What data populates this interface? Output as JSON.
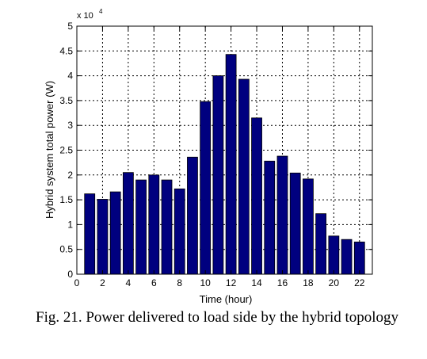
{
  "chart_data": {
    "type": "bar",
    "x": [
      1,
      2,
      3,
      4,
      5,
      6,
      7,
      8,
      9,
      10,
      11,
      12,
      13,
      14,
      15,
      16,
      17,
      18,
      19,
      20,
      21,
      22
    ],
    "values": [
      16200,
      15100,
      16600,
      20500,
      19000,
      20000,
      19000,
      17200,
      23600,
      34800,
      40000,
      44300,
      39300,
      31500,
      22800,
      23800,
      20400,
      19200,
      12200,
      7700,
      7000,
      6500
    ],
    "xlabel": "Time (hour)",
    "ylabel": "Hybrid system total power (W)",
    "xlim": [
      0,
      23
    ],
    "ylim": [
      0,
      50000
    ],
    "xticks": [
      "0",
      "2",
      "4",
      "6",
      "8",
      "10",
      "12",
      "14",
      "16",
      "18",
      "20",
      "22"
    ],
    "yticks": [
      "0",
      "0.5",
      "1",
      "1.5",
      "2",
      "2.5",
      "3",
      "3.5",
      "4",
      "4.5",
      "5"
    ],
    "y_multiplier": {
      "base": "x 10",
      "exponent": "4"
    },
    "grid": true,
    "bar_color": "#00007f"
  },
  "caption": "Fig. 21. Power delivered to load side by the hybrid topology"
}
